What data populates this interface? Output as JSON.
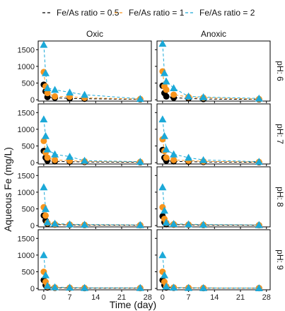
{
  "chart_data": {
    "type": "line",
    "xlabel": "Time (day)",
    "ylabel": "Aqueous Fe (mg/L)",
    "xlim": [
      -1.5,
      29
    ],
    "ylim": [
      -40,
      1760
    ],
    "x_ticks": [
      0,
      7,
      14,
      21,
      28
    ],
    "y_ticks": [
      0,
      500,
      1000,
      1500
    ],
    "columns": [
      "Oxic",
      "Anoxic"
    ],
    "rows": [
      "pH: 6",
      "pH: 7",
      "pH: 8",
      "pH: 9"
    ],
    "legend": {
      "placement": "top",
      "entries": [
        {
          "label": "Fe/As ratio = 0.5",
          "series": "r05"
        },
        {
          "label": "Fe/As ratio = 1",
          "series": "r1"
        },
        {
          "label": "Fe/As ratio = 2",
          "series": "r2"
        }
      ]
    },
    "series_styles": {
      "r05": {
        "color": "#000000",
        "marker": "circle"
      },
      "r1": {
        "color": "#F7941D",
        "marker": "circle"
      },
      "r2": {
        "color": "#1CA9D8",
        "marker": "triangle"
      }
    },
    "x": [
      0,
      0.5,
      1,
      3,
      7,
      11,
      26
    ],
    "panels": [
      {
        "row": "pH: 6",
        "column": "Oxic",
        "series": [
          {
            "key": "r05",
            "values": [
              450,
              250,
              80,
              60,
              40,
              30,
              10
            ]
          },
          {
            "key": "r1",
            "values": [
              830,
              400,
              200,
              100,
              90,
              60,
              20
            ]
          },
          {
            "key": "r2",
            "values": [
              1650,
              800,
              350,
              300,
              220,
              150,
              30
            ]
          }
        ]
      },
      {
        "row": "pH: 6",
        "column": "Anoxic",
        "series": [
          {
            "key": "r05",
            "values": [
              420,
              200,
              100,
              60,
              40,
              20,
              10
            ]
          },
          {
            "key": "r1",
            "values": [
              850,
              400,
              300,
              150,
              80,
              60,
              20
            ]
          },
          {
            "key": "r2",
            "values": [
              1680,
              800,
              550,
              350,
              100,
              80,
              40
            ]
          }
        ]
      },
      {
        "row": "pH: 7",
        "column": "Oxic",
        "series": [
          {
            "key": "r05",
            "values": [
              350,
              150,
              60,
              40,
              30,
              20,
              10
            ]
          },
          {
            "key": "r1",
            "values": [
              650,
              300,
              150,
              80,
              60,
              40,
              20
            ]
          },
          {
            "key": "r2",
            "values": [
              1300,
              800,
              400,
              250,
              180,
              60,
              30
            ]
          }
        ]
      },
      {
        "row": "pH: 7",
        "column": "Anoxic",
        "series": [
          {
            "key": "r05",
            "values": [
              380,
              150,
              60,
              40,
              30,
              20,
              10
            ]
          },
          {
            "key": "r1",
            "values": [
              700,
              350,
              150,
              80,
              60,
              40,
              20
            ]
          },
          {
            "key": "r2",
            "values": [
              1300,
              800,
              400,
              250,
              150,
              80,
              30
            ]
          }
        ]
      },
      {
        "row": "pH: 8",
        "column": "Oxic",
        "series": [
          {
            "key": "r05",
            "values": [
              300,
              150,
              50,
              30,
              20,
              15,
              10
            ]
          },
          {
            "key": "r1",
            "values": [
              550,
              300,
              80,
              40,
              30,
              20,
              10
            ]
          },
          {
            "key": "r2",
            "values": [
              1150,
              500,
              100,
              60,
              40,
              30,
              20
            ]
          }
        ]
      },
      {
        "row": "pH: 8",
        "column": "Anoxic",
        "series": [
          {
            "key": "r05",
            "values": [
              280,
              100,
              40,
              30,
              20,
              15,
              10
            ]
          },
          {
            "key": "r1",
            "values": [
              550,
              200,
              80,
              40,
              30,
              20,
              10
            ]
          },
          {
            "key": "r2",
            "values": [
              1150,
              450,
              90,
              50,
              40,
              30,
              20
            ]
          }
        ]
      },
      {
        "row": "pH: 9",
        "column": "Oxic",
        "series": [
          {
            "key": "r05",
            "values": [
              250,
              100,
              30,
              20,
              15,
              10,
              10
            ]
          },
          {
            "key": "r1",
            "values": [
              500,
              200,
              60,
              30,
              20,
              15,
              10
            ]
          },
          {
            "key": "r2",
            "values": [
              1000,
              400,
              80,
              40,
              30,
              20,
              20
            ]
          }
        ]
      },
      {
        "row": "pH: 9",
        "column": "Anoxic",
        "series": [
          {
            "key": "r05",
            "values": [
              250,
              100,
              30,
              20,
              15,
              10,
              10
            ]
          },
          {
            "key": "r1",
            "values": [
              500,
              200,
              60,
              30,
              20,
              15,
              10
            ]
          },
          {
            "key": "r2",
            "values": [
              1000,
              400,
              60,
              30,
              20,
              15,
              10
            ]
          }
        ]
      }
    ]
  }
}
